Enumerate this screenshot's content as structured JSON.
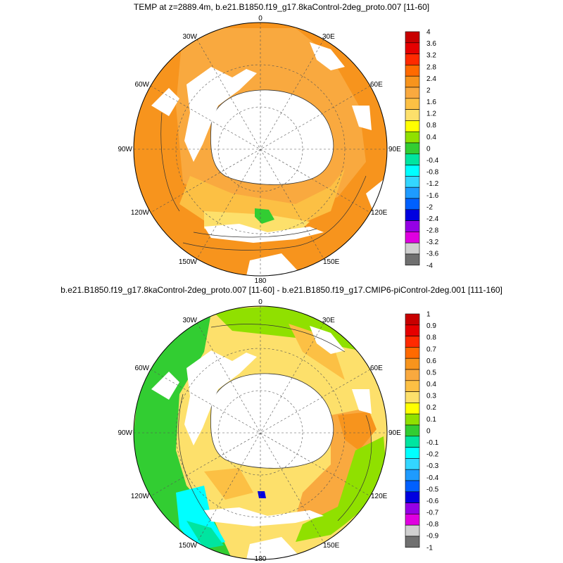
{
  "panels": [
    {
      "title": "TEMP at z=2889.4m, b.e21.B1850.f19_g17.8kaControl-2deg_proto.007 [11-60]",
      "center": [
        370,
        212
      ],
      "radius": 180,
      "colorbar": {
        "labels": [
          "4",
          "3.6",
          "3.2",
          "2.8",
          "2.4",
          "2",
          "1.6",
          "1.2",
          "0.8",
          "0.4",
          "0",
          "-0.4",
          "-0.8",
          "-1.2",
          "-1.6",
          "-2",
          "-2.4",
          "-2.8",
          "-3.2",
          "-3.6",
          "-4"
        ],
        "colors": [
          "#c80000",
          "#e60000",
          "#ff2a00",
          "#ff6a00",
          "#f7941d",
          "#f9a93f",
          "#fcc044",
          "#fde06b",
          "#ffff00",
          "#90e000",
          "#32cd32",
          "#00e5a0",
          "#00ffff",
          "#33d6ff",
          "#1e9bff",
          "#0060ff",
          "#0000e0",
          "#9500e6",
          "#e000e0",
          "#d0d0d0",
          "#707070"
        ]
      }
    },
    {
      "title": "b.e21.B1850.f19_g17.8kaControl-2deg_proto.007 [11-60] - b.e21.B1850.f19_g17.CMIP6-piControl-2deg.001 [111-160]",
      "center": [
        370,
        615
      ],
      "radius": 180,
      "colorbar": {
        "labels": [
          "1",
          "0.9",
          "0.8",
          "0.7",
          "0.6",
          "0.5",
          "0.4",
          "0.3",
          "0.2",
          "0.1",
          "0",
          "-0.1",
          "-0.2",
          "-0.3",
          "-0.4",
          "-0.5",
          "-0.6",
          "-0.7",
          "-0.8",
          "-0.9",
          "-1"
        ],
        "colors": [
          "#c80000",
          "#e60000",
          "#ff2a00",
          "#ff6a00",
          "#f7941d",
          "#f9a93f",
          "#fcc044",
          "#fde06b",
          "#ffff00",
          "#90e000",
          "#32cd32",
          "#00e5a0",
          "#00ffff",
          "#33d6ff",
          "#1e9bff",
          "#0060ff",
          "#0000e0",
          "#9500e6",
          "#e000e0",
          "#d0d0d0",
          "#707070"
        ]
      }
    }
  ],
  "longitude_labels": {
    "lon_0": "0",
    "lon_30e": "30E",
    "lon_60e": "60E",
    "lon_90e": "90E",
    "lon_120e": "120E",
    "lon_150e": "150E",
    "lon_180": "180",
    "lon_150w": "150W",
    "lon_120w": "120W",
    "lon_90w": "90W",
    "lon_60w": "60W",
    "lon_30w": "30W"
  }
}
